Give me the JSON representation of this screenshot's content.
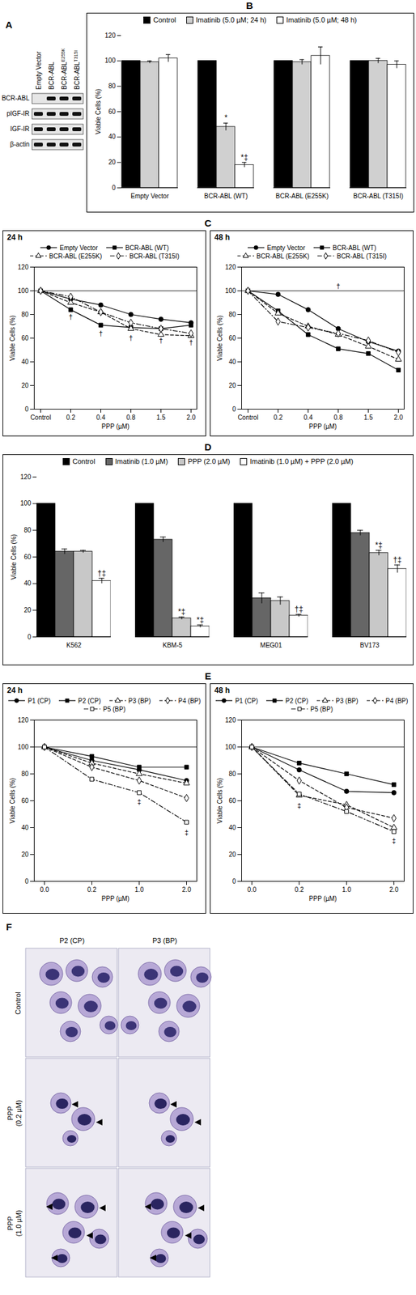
{
  "panel_A": {
    "panel_label": "A",
    "lanes": [
      {
        "text": "Empty Vector"
      },
      {
        "text": "BCR-ABL"
      },
      {
        "text": "BCR-ABL",
        "sup": "E255K"
      },
      {
        "text": "BCR-ABL",
        "sup": "T315I"
      }
    ],
    "rows": [
      {
        "label": "BCR-ABL",
        "bands": [
          0,
          1,
          1,
          1
        ]
      },
      {
        "label": "pIGF-IR",
        "bands": [
          1,
          1,
          1,
          1
        ]
      },
      {
        "label": "IGF-IR",
        "bands": [
          1,
          1,
          1,
          1
        ]
      },
      {
        "label": "β-actin",
        "bands": [
          1,
          1,
          1,
          1
        ]
      }
    ]
  },
  "chart_data": [
    {
      "panel_label": "B",
      "type": "bar",
      "categories": [
        "Empty Vector",
        "BCR-ABL (WT)",
        "BCR-ABL (E255K)",
        "BCR-ABL (T315I)"
      ],
      "series": [
        {
          "name": "Control",
          "color": "#000000",
          "values": [
            100,
            100,
            100,
            100
          ]
        },
        {
          "name": "Imatinib (5.0 µM; 24 h)",
          "color": "#d0d0d0",
          "values": [
            99,
            48,
            99,
            100
          ],
          "errors": [
            1,
            3,
            2,
            2
          ]
        },
        {
          "name": "Imatinib (5.0 µM; 48 h)",
          "color": "#ffffff",
          "values": [
            102,
            18,
            104,
            97
          ],
          "errors": [
            3,
            2,
            7,
            3
          ]
        }
      ],
      "y_label": "Viable Cells (%)",
      "ylim": [
        0,
        120
      ],
      "yticks": [
        0,
        20,
        40,
        60,
        80,
        100,
        120
      ],
      "legend": "top",
      "annotations": [
        {
          "category": "BCR-ABL (WT)",
          "series": "Imatinib (5.0 µM; 24 h)",
          "text": "*"
        },
        {
          "category": "BCR-ABL (WT)",
          "series": "Imatinib (5.0 µM; 48 h)",
          "text": "*‡"
        }
      ]
    },
    {
      "panel_label": "C",
      "type": "line",
      "title": "24 h",
      "x": [
        "Control",
        "0.2",
        "0.4",
        "0.8",
        "1.5",
        "2.0"
      ],
      "x_label": "PPP (µM)",
      "y_label": "Viable Cells (%)",
      "ylim": [
        0,
        120
      ],
      "yticks": [
        0,
        20,
        40,
        60,
        80,
        100,
        120
      ],
      "reference_y": 100,
      "legend": "top",
      "series": [
        {
          "name": "Empty Vector",
          "color": "#000000",
          "marker": "circle",
          "line_style": "solid",
          "values": [
            100,
            93,
            88,
            80,
            76,
            73
          ]
        },
        {
          "name": "BCR-ABL (WT)",
          "color": "#000000",
          "marker": "square",
          "line_style": "solid",
          "values": [
            100,
            84,
            71,
            69,
            68,
            71
          ]
        },
        {
          "name": "BCR-ABL (E255K)",
          "color": "#000000",
          "marker": "open triangle",
          "line_style": "dashed",
          "values": [
            100,
            90,
            82,
            68,
            63,
            62
          ]
        },
        {
          "name": "BCR-ABL (T315I)",
          "color": "#000000",
          "marker": "open diamond",
          "line_style": "dashdot",
          "values": [
            100,
            95,
            82,
            73,
            68,
            64
          ]
        }
      ],
      "annotations": [
        {
          "x": "0.2",
          "y": 78,
          "text": "†"
        },
        {
          "x": "0.4",
          "y": 64,
          "text": "†"
        },
        {
          "x": "0.8",
          "y": 60,
          "text": "†"
        },
        {
          "x": "1.5",
          "y": 58,
          "text": "†"
        },
        {
          "x": "2.0",
          "y": 56,
          "text": "†"
        }
      ]
    },
    {
      "type": "line",
      "title": "48 h",
      "x": [
        "Control",
        "0.2",
        "0.4",
        "0.8",
        "1.5",
        "2.0"
      ],
      "x_label": "PPP (µM)",
      "y_label": "Viable Cells (%)",
      "ylim": [
        0,
        120
      ],
      "yticks": [
        0,
        20,
        40,
        60,
        80,
        100,
        120
      ],
      "reference_y": 100,
      "legend": "top",
      "series": [
        {
          "name": "Empty Vector",
          "color": "#000000",
          "marker": "circle",
          "line_style": "solid",
          "values": [
            100,
            97,
            84,
            68,
            57,
            49
          ]
        },
        {
          "name": "BCR-ABL (WT)",
          "color": "#000000",
          "marker": "square",
          "line_style": "solid",
          "values": [
            100,
            83,
            63,
            51,
            47,
            33
          ]
        },
        {
          "name": "BCR-ABL (E255K)",
          "color": "#000000",
          "marker": "open triangle",
          "line_style": "dashed",
          "values": [
            100,
            81,
            70,
            63,
            53,
            42
          ]
        },
        {
          "name": "BCR-ABL (T315I)",
          "color": "#000000",
          "marker": "open diamond",
          "line_style": "dashdot",
          "values": [
            100,
            74,
            69,
            64,
            58,
            48
          ]
        }
      ],
      "annotations": [
        {
          "x": "0.8",
          "y": 104,
          "text": "†"
        }
      ]
    },
    {
      "panel_label": "D",
      "type": "bar",
      "categories": [
        "K562",
        "KBM-5",
        "MEG01",
        "BV173"
      ],
      "series": [
        {
          "name": "Control",
          "color": "#000000",
          "values": [
            100,
            100,
            100,
            100
          ]
        },
        {
          "name": "Imatinib (1.0 µM)",
          "color": "#666666",
          "values": [
            64,
            73,
            29,
            78
          ],
          "errors": [
            2,
            2,
            4,
            2
          ]
        },
        {
          "name": "PPP (2.0 µM)",
          "color": "#c8c8c8",
          "values": [
            64,
            14,
            27,
            63
          ],
          "errors": [
            1,
            1,
            3,
            2
          ]
        },
        {
          "name": "Imatinib (1.0 µM) + PPP (2.0 µM)",
          "color": "#ffffff",
          "values": [
            42,
            8,
            16,
            51
          ],
          "errors": [
            2,
            1,
            1,
            3
          ]
        }
      ],
      "y_label": "Viable Cells (%)",
      "ylim": [
        0,
        120
      ],
      "yticks": [
        0,
        20,
        40,
        60,
        80,
        100,
        120
      ],
      "legend": "top",
      "annotations": [
        {
          "category": "K562",
          "series": "Imatinib (1.0 µM) + PPP (2.0 µM)",
          "text": "†‡"
        },
        {
          "category": "KBM-5",
          "series": "PPP (2.0 µM)",
          "text": "*‡"
        },
        {
          "category": "KBM-5",
          "series": "Imatinib (1.0 µM) + PPP (2.0 µM)",
          "text": "*‡"
        },
        {
          "category": "MEG01",
          "series": "Imatinib (1.0 µM) + PPP (2.0 µM)",
          "text": "†‡"
        },
        {
          "category": "BV173",
          "series": "PPP (2.0 µM)",
          "text": "*‡"
        },
        {
          "category": "BV173",
          "series": "Imatinib (1.0 µM) + PPP (2.0 µM)",
          "text": "†‡"
        }
      ]
    },
    {
      "panel_label": "E",
      "type": "line",
      "title": "24 h",
      "x": [
        "0.0",
        "0.2",
        "1.0",
        "2.0"
      ],
      "x_label": "PPP (µM)",
      "y_label": "Viable Cells (%)",
      "ylim": [
        0,
        120
      ],
      "yticks": [
        0,
        20,
        40,
        60,
        80,
        100,
        120
      ],
      "reference_y": 100,
      "legend": "top",
      "series": [
        {
          "name": "P1 (CP)",
          "color": "#000000",
          "marker": "circle",
          "line_style": "solid",
          "values": [
            100,
            90,
            83,
            75
          ]
        },
        {
          "name": "P2 (CP)",
          "color": "#000000",
          "marker": "square",
          "line_style": "solid",
          "values": [
            100,
            93,
            85,
            85
          ]
        },
        {
          "name": "P3 (BP)",
          "color": "#000000",
          "marker": "open triangle",
          "line_style": "dashed",
          "values": [
            100,
            88,
            80,
            73
          ]
        },
        {
          "name": "P4 (BP)",
          "color": "#000000",
          "marker": "open diamond",
          "line_style": "dashed",
          "values": [
            100,
            85,
            75,
            62
          ]
        },
        {
          "name": "P5 (BP)",
          "color": "#000000",
          "marker": "open square",
          "line_style": "dashdot",
          "values": [
            100,
            76,
            66,
            44
          ]
        }
      ],
      "annotations": [
        {
          "x": "1.0",
          "y": 59,
          "text": "‡"
        },
        {
          "x": "2.0",
          "y": 36,
          "text": "‡"
        }
      ]
    },
    {
      "type": "line",
      "title": "48 h",
      "x": [
        "0.0",
        "0.2",
        "1.0",
        "2.0"
      ],
      "x_label": "PPP (µM)",
      "y_label": "Viable Cells (%)",
      "ylim": [
        0,
        120
      ],
      "yticks": [
        0,
        20,
        40,
        60,
        80,
        100,
        120
      ],
      "reference_y": 100,
      "legend": "top",
      "series": [
        {
          "name": "P1 (CP)",
          "color": "#000000",
          "marker": "circle",
          "line_style": "solid",
          "values": [
            100,
            83,
            67,
            66
          ]
        },
        {
          "name": "P2 (CP)",
          "color": "#000000",
          "marker": "square",
          "line_style": "solid",
          "values": [
            100,
            88,
            80,
            72
          ]
        },
        {
          "name": "P3 (BP)",
          "color": "#000000",
          "marker": "open triangle",
          "line_style": "dashed",
          "values": [
            100,
            64,
            57,
            40
          ]
        },
        {
          "name": "P4 (BP)",
          "color": "#000000",
          "marker": "open diamond",
          "line_style": "dashed",
          "values": [
            100,
            75,
            55,
            47
          ]
        },
        {
          "name": "P5 (BP)",
          "color": "#000000",
          "marker": "open square",
          "line_style": "dashdot",
          "values": [
            100,
            65,
            52,
            37
          ]
        }
      ],
      "annotations": [
        {
          "x": "0.2",
          "y": 56,
          "text": "‡"
        },
        {
          "x": "2.0",
          "y": 30,
          "text": "‡"
        }
      ]
    }
  ],
  "panel_F": {
    "panel_label": "F",
    "columns": [
      "P2 (CP)",
      "P3 (BP)"
    ],
    "rows": [
      {
        "label": [
          "Control"
        ]
      },
      {
        "label": [
          "PPP",
          "(0.2 µM)"
        ]
      },
      {
        "label": [
          "PPP",
          "(1.0 µM)"
        ]
      }
    ]
  }
}
